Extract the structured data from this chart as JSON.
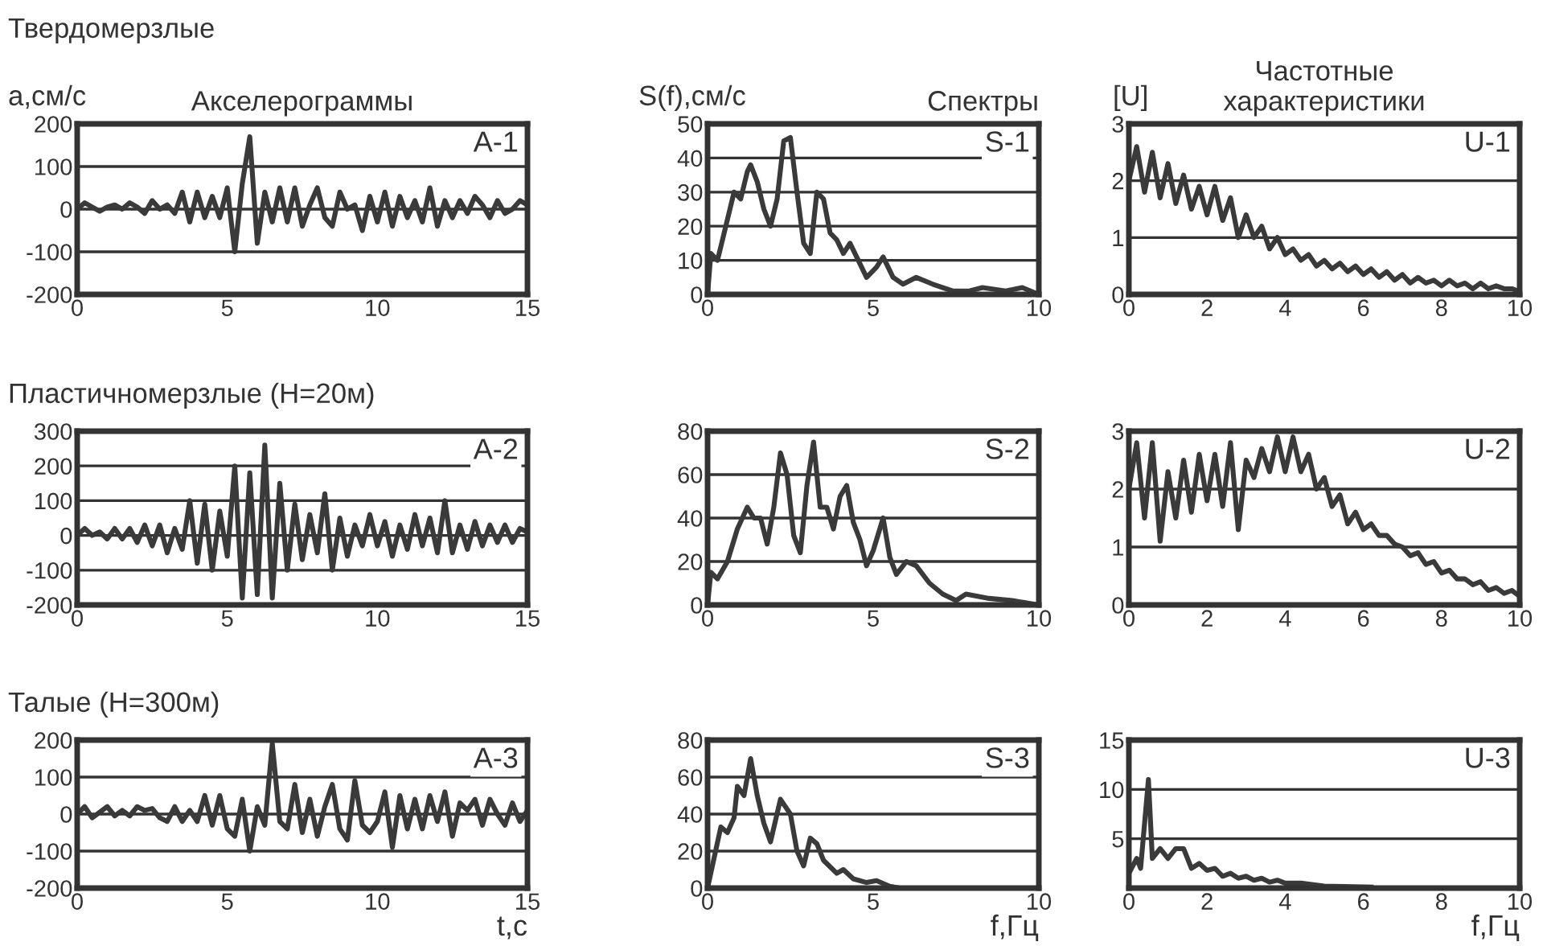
{
  "chart_data": [
    {
      "type": "line",
      "title": "Акселерограммы",
      "ylabel": "а,см/с",
      "annotations": [
        "Твердомерзлые",
        "A-1"
      ],
      "color": "#3a3a3a",
      "line_style": "solid",
      "grid": "y",
      "xlim": [
        0,
        15
      ],
      "xticks": [
        0,
        5,
        10,
        15
      ],
      "ylim": [
        -200,
        200
      ],
      "yticks": [
        -200,
        -100,
        0,
        100,
        200
      ],
      "x": [
        0,
        0.25,
        0.5,
        0.75,
        1,
        1.25,
        1.5,
        1.75,
        2,
        2.25,
        2.5,
        2.75,
        3,
        3.25,
        3.5,
        3.75,
        4,
        4.25,
        4.5,
        4.75,
        5,
        5.25,
        5.5,
        5.75,
        6,
        6.25,
        6.5,
        6.75,
        7,
        7.25,
        7.5,
        7.75,
        8,
        8.25,
        8.5,
        8.75,
        9,
        9.25,
        9.5,
        9.75,
        10,
        10.25,
        10.5,
        10.75,
        11,
        11.25,
        11.5,
        11.75,
        12,
        12.25,
        12.5,
        12.75,
        13,
        13.25,
        13.5,
        13.75,
        14,
        14.25,
        14.5,
        14.75,
        15
      ],
      "values": [
        0,
        15,
        5,
        -5,
        5,
        10,
        0,
        15,
        5,
        -10,
        20,
        0,
        10,
        -10,
        40,
        -30,
        40,
        -20,
        30,
        -20,
        50,
        -100,
        60,
        170,
        -80,
        40,
        -30,
        50,
        -30,
        50,
        -40,
        10,
        50,
        -20,
        -40,
        40,
        0,
        10,
        -50,
        30,
        -30,
        40,
        -40,
        30,
        -20,
        20,
        -30,
        50,
        -40,
        20,
        -20,
        20,
        -10,
        30,
        10,
        -20,
        20,
        -10,
        0,
        20,
        10
      ]
    },
    {
      "type": "line",
      "title": "Спектры",
      "ylabel": "S(f),см/с",
      "annotations": [
        "S-1"
      ],
      "color": "#3a3a3a",
      "line_style": "solid",
      "grid": "y",
      "xlim": [
        0,
        10
      ],
      "xticks": [
        0,
        5,
        10
      ],
      "ylim": [
        0,
        50
      ],
      "yticks": [
        0,
        10,
        20,
        30,
        40,
        50
      ],
      "x": [
        0,
        0.1,
        0.3,
        0.5,
        0.8,
        1.0,
        1.2,
        1.3,
        1.5,
        1.7,
        1.9,
        2.1,
        2.3,
        2.5,
        2.7,
        2.9,
        3.1,
        3.3,
        3.5,
        3.7,
        3.9,
        4.1,
        4.3,
        4.5,
        4.8,
        5.1,
        5.3,
        5.6,
        5.9,
        6.3,
        6.8,
        7.4,
        7.9,
        8.3,
        9.0,
        9.5,
        10
      ],
      "values": [
        0,
        12,
        10,
        18,
        30,
        28,
        36,
        38,
        33,
        25,
        20,
        28,
        45,
        46,
        30,
        15,
        12,
        30,
        28,
        18,
        16,
        12,
        15,
        11,
        5,
        8,
        11,
        5,
        3,
        5,
        3,
        1,
        1,
        2,
        1,
        2,
        0
      ]
    },
    {
      "type": "line",
      "title": "Частотные\nхарактеристики",
      "ylabel": "[U]",
      "annotations": [
        "U-1"
      ],
      "color": "#3a3a3a",
      "line_style": "solid",
      "grid": "y",
      "xlim": [
        0,
        10
      ],
      "xticks": [
        0,
        2,
        4,
        6,
        8,
        10
      ],
      "ylim": [
        0,
        3
      ],
      "yticks": [
        0,
        1,
        2,
        3
      ],
      "x": [
        0,
        0.2,
        0.4,
        0.6,
        0.8,
        1.0,
        1.2,
        1.4,
        1.6,
        1.8,
        2.0,
        2.2,
        2.4,
        2.6,
        2.8,
        3.0,
        3.2,
        3.4,
        3.6,
        3.8,
        4.0,
        4.2,
        4.4,
        4.6,
        4.8,
        5.0,
        5.2,
        5.4,
        5.6,
        5.8,
        6.0,
        6.2,
        6.4,
        6.6,
        6.8,
        7.0,
        7.2,
        7.4,
        7.6,
        7.8,
        8.0,
        8.2,
        8.4,
        8.6,
        8.8,
        9.0,
        9.2,
        9.4,
        9.6,
        9.8,
        10
      ],
      "values": [
        2.0,
        2.6,
        1.8,
        2.5,
        1.7,
        2.3,
        1.6,
        2.1,
        1.5,
        1.9,
        1.4,
        1.9,
        1.3,
        1.7,
        1.0,
        1.4,
        1.0,
        1.2,
        0.8,
        1.0,
        0.7,
        0.8,
        0.6,
        0.7,
        0.5,
        0.6,
        0.45,
        0.55,
        0.4,
        0.5,
        0.35,
        0.45,
        0.3,
        0.4,
        0.25,
        0.35,
        0.2,
        0.3,
        0.2,
        0.25,
        0.15,
        0.25,
        0.15,
        0.2,
        0.1,
        0.2,
        0.1,
        0.15,
        0.1,
        0.1,
        0.05
      ]
    },
    {
      "type": "line",
      "annotations": [
        "Пластичномерзлые (Н=20м)",
        "A-2"
      ],
      "color": "#3a3a3a",
      "line_style": "solid",
      "grid": "y",
      "xlim": [
        0,
        15
      ],
      "xticks": [
        0,
        5,
        10,
        15
      ],
      "ylim": [
        -200,
        300
      ],
      "yticks": [
        -200,
        -100,
        0,
        100,
        200,
        300
      ],
      "x": [
        0,
        0.25,
        0.5,
        0.75,
        1,
        1.25,
        1.5,
        1.75,
        2,
        2.25,
        2.5,
        2.75,
        3,
        3.25,
        3.5,
        3.75,
        4,
        4.25,
        4.5,
        4.75,
        5,
        5.25,
        5.5,
        5.75,
        6,
        6.25,
        6.5,
        6.75,
        7,
        7.25,
        7.5,
        7.75,
        8,
        8.25,
        8.5,
        8.75,
        9,
        9.25,
        9.5,
        9.75,
        10,
        10.25,
        10.5,
        10.75,
        11,
        11.25,
        11.5,
        11.75,
        12,
        12.25,
        12.5,
        12.75,
        13,
        13.25,
        13.5,
        13.75,
        14,
        14.25,
        14.5,
        14.75,
        15
      ],
      "values": [
        0,
        20,
        0,
        10,
        -10,
        20,
        -10,
        20,
        -20,
        30,
        -30,
        30,
        -50,
        20,
        -40,
        100,
        -80,
        90,
        -100,
        70,
        -60,
        200,
        -180,
        180,
        -170,
        260,
        -180,
        150,
        -100,
        90,
        -70,
        60,
        -50,
        120,
        -100,
        50,
        -60,
        30,
        -30,
        60,
        -30,
        40,
        -60,
        30,
        -40,
        60,
        -30,
        50,
        -50,
        100,
        -50,
        30,
        -40,
        40,
        -30,
        30,
        -20,
        30,
        -20,
        20,
        10
      ]
    },
    {
      "type": "line",
      "annotations": [
        "S-2"
      ],
      "color": "#3a3a3a",
      "line_style": "solid",
      "grid": "y",
      "xlim": [
        0,
        10
      ],
      "xticks": [
        0,
        5,
        10
      ],
      "ylim": [
        0,
        80
      ],
      "yticks": [
        0,
        20,
        40,
        60,
        80
      ],
      "x": [
        0,
        0.1,
        0.3,
        0.6,
        0.9,
        1.2,
        1.4,
        1.6,
        1.8,
        2.0,
        2.2,
        2.4,
        2.6,
        2.8,
        3.0,
        3.2,
        3.4,
        3.6,
        3.8,
        4.0,
        4.2,
        4.4,
        4.6,
        4.8,
        5.0,
        5.3,
        5.5,
        5.7,
        6.0,
        6.3,
        6.7,
        7.1,
        7.5,
        7.8,
        8.5,
        9.2,
        10
      ],
      "values": [
        0,
        15,
        12,
        20,
        35,
        45,
        40,
        40,
        28,
        45,
        70,
        60,
        32,
        24,
        55,
        75,
        45,
        45,
        35,
        50,
        55,
        38,
        30,
        18,
        25,
        40,
        22,
        14,
        20,
        18,
        10,
        5,
        2,
        5,
        3,
        2,
        0
      ]
    },
    {
      "type": "line",
      "annotations": [
        "U-2"
      ],
      "color": "#3a3a3a",
      "line_style": "solid",
      "grid": "y",
      "xlim": [
        0,
        10
      ],
      "xticks": [
        0,
        2,
        4,
        6,
        8,
        10
      ],
      "ylim": [
        0,
        3
      ],
      "yticks": [
        0,
        1,
        2,
        3
      ],
      "x": [
        0,
        0.2,
        0.4,
        0.6,
        0.8,
        1.0,
        1.2,
        1.4,
        1.6,
        1.8,
        2.0,
        2.2,
        2.4,
        2.6,
        2.8,
        3.0,
        3.2,
        3.4,
        3.6,
        3.8,
        4.0,
        4.2,
        4.4,
        4.6,
        4.8,
        5.0,
        5.2,
        5.4,
        5.6,
        5.8,
        6.0,
        6.2,
        6.4,
        6.6,
        6.8,
        7.0,
        7.2,
        7.4,
        7.6,
        7.8,
        8.0,
        8.2,
        8.4,
        8.6,
        8.8,
        9.0,
        9.2,
        9.4,
        9.6,
        9.8,
        10
      ],
      "values": [
        2.0,
        2.8,
        1.5,
        2.8,
        1.1,
        2.3,
        1.5,
        2.5,
        1.6,
        2.6,
        1.8,
        2.6,
        1.7,
        2.8,
        1.3,
        2.5,
        2.2,
        2.7,
        2.3,
        2.9,
        2.3,
        2.9,
        2.3,
        2.6,
        2.0,
        2.2,
        1.7,
        1.9,
        1.4,
        1.6,
        1.3,
        1.4,
        1.2,
        1.2,
        1.05,
        1.0,
        0.85,
        0.9,
        0.7,
        0.75,
        0.55,
        0.6,
        0.45,
        0.45,
        0.35,
        0.4,
        0.25,
        0.3,
        0.2,
        0.25,
        0.15
      ]
    },
    {
      "type": "line",
      "xlabel": "t,c",
      "annotations": [
        "Талые (Н=300м)",
        "A-3"
      ],
      "color": "#3a3a3a",
      "line_style": "solid",
      "grid": "y",
      "xlim": [
        0,
        15
      ],
      "xticks": [
        0,
        5,
        10,
        15
      ],
      "ylim": [
        -200,
        200
      ],
      "yticks": [
        -200,
        -100,
        0,
        100,
        200
      ],
      "x": [
        0,
        0.25,
        0.5,
        0.75,
        1,
        1.25,
        1.5,
        1.75,
        2,
        2.25,
        2.5,
        2.75,
        3,
        3.25,
        3.5,
        3.75,
        4,
        4.25,
        4.5,
        4.75,
        5,
        5.25,
        5.5,
        5.75,
        6,
        6.25,
        6.5,
        6.75,
        7,
        7.25,
        7.5,
        7.75,
        8,
        8.25,
        8.5,
        8.75,
        9,
        9.25,
        9.5,
        9.75,
        10,
        10.25,
        10.5,
        10.75,
        11,
        11.25,
        11.5,
        11.75,
        12,
        12.25,
        12.5,
        12.75,
        13,
        13.25,
        13.5,
        13.75,
        14,
        14.25,
        14.5,
        14.75,
        15
      ],
      "values": [
        0,
        20,
        -10,
        5,
        20,
        -5,
        10,
        -5,
        20,
        10,
        15,
        -10,
        -20,
        20,
        -20,
        10,
        -20,
        50,
        -30,
        50,
        -40,
        -60,
        40,
        -100,
        20,
        -30,
        190,
        -20,
        -40,
        80,
        -50,
        40,
        -60,
        20,
        80,
        -40,
        -70,
        90,
        -30,
        -50,
        -20,
        60,
        -90,
        50,
        -40,
        40,
        -40,
        50,
        -20,
        60,
        -60,
        30,
        10,
        40,
        -30,
        40,
        0,
        -30,
        30,
        -20,
        10
      ]
    },
    {
      "type": "line",
      "xlabel": "f,Гц",
      "annotations": [
        "S-3"
      ],
      "color": "#3a3a3a",
      "line_style": "solid",
      "grid": "y",
      "xlim": [
        0,
        10
      ],
      "xticks": [
        0,
        5,
        10
      ],
      "ylim": [
        0,
        80
      ],
      "yticks": [
        0,
        20,
        40,
        60,
        80
      ],
      "x": [
        0,
        0.4,
        0.6,
        0.8,
        0.9,
        1.1,
        1.3,
        1.5,
        1.7,
        1.9,
        2.2,
        2.5,
        2.7,
        2.9,
        3.1,
        3.3,
        3.5,
        3.9,
        4.1,
        4.4,
        4.8,
        5.1,
        5.5,
        5.8,
        6.3,
        7.0
      ],
      "values": [
        0,
        33,
        30,
        38,
        55,
        50,
        70,
        50,
        35,
        25,
        48,
        40,
        20,
        12,
        27,
        24,
        15,
        8,
        10,
        5,
        3,
        4,
        1,
        0,
        0,
        0
      ]
    },
    {
      "type": "line",
      "xlabel": "f,Гц",
      "annotations": [
        "U-3"
      ],
      "color": "#3a3a3a",
      "line_style": "solid",
      "grid": "y",
      "xlim": [
        0,
        10
      ],
      "xticks": [
        0,
        2,
        4,
        6,
        8,
        10
      ],
      "ylim": [
        0,
        15
      ],
      "yticks": [
        5,
        10,
        15
      ],
      "x": [
        0,
        0.2,
        0.3,
        0.5,
        0.6,
        0.8,
        1.0,
        1.2,
        1.4,
        1.6,
        1.8,
        2.0,
        2.2,
        2.4,
        2.6,
        2.8,
        3.0,
        3.2,
        3.4,
        3.6,
        3.8,
        4.0,
        4.4,
        5.0,
        6.2
      ],
      "values": [
        1.5,
        3,
        2,
        11,
        3,
        4,
        3,
        4,
        4,
        2,
        2.5,
        1.8,
        2,
        1.2,
        1.5,
        1,
        1.2,
        0.8,
        1,
        0.6,
        0.8,
        0.5,
        0.5,
        0.2,
        0.1
      ]
    }
  ]
}
